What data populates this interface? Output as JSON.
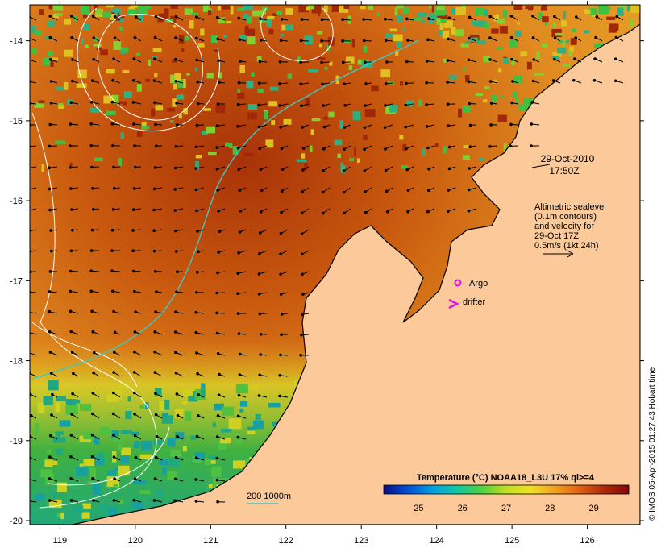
{
  "map": {
    "timestamp_lines": [
      "29-Oct-2010",
      "17:50Z"
    ],
    "altimetry_note_lines": [
      "Altimetric sealevel",
      "(0.1m contours)",
      "and velocity for",
      "29-Oct 17Z",
      "0.5m/s (1kt 24h)"
    ],
    "legend_argo": "Argo",
    "legend_drifter": "drifter",
    "isobath_label": "200  1000m",
    "credit": "© IMOS 05-Apr-2015 01:27:43 Hobart time",
    "lon_ticks": [
      119,
      120,
      121,
      122,
      123,
      124,
      125,
      126
    ],
    "lat_ticks": [
      -14,
      -15,
      -16,
      -17,
      -18,
      -19,
      -20
    ],
    "lon_range": [
      118.6,
      126.7
    ],
    "lat_range": [
      -20.05,
      -13.55
    ],
    "land_color": "#fcc99b",
    "argo_color": "#e010e0",
    "drifter_color": "#e010e0",
    "isobath_color": "#40c8c0",
    "colorbar": {
      "title": "Temperature (°C) NOAA18_L3U 17% ql>=4",
      "ticks": [
        25,
        26,
        27,
        28,
        29
      ],
      "range": [
        24.2,
        29.8
      ],
      "stops": [
        "#0a0a8c",
        "#0050d8",
        "#00a0e0",
        "#10c8a0",
        "#50d040",
        "#c0e020",
        "#f0e020",
        "#f0a020",
        "#e06010",
        "#b02808",
        "#800808"
      ]
    }
  }
}
